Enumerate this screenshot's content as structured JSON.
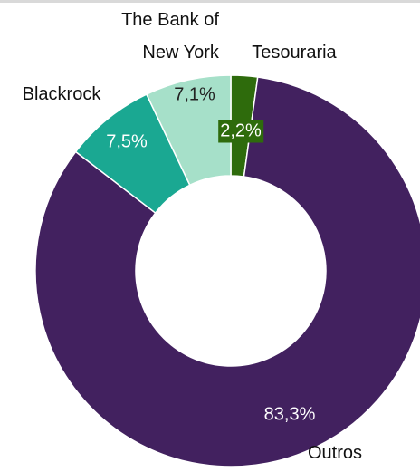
{
  "chart_data": {
    "type": "donut",
    "categories": [
      "Tesouraria",
      "Outros",
      "Blackrock",
      "The Bank of\nNew York"
    ],
    "values": [
      2.2,
      83.3,
      7.5,
      7.1
    ],
    "value_labels": [
      "2,2%",
      "83,3%",
      "7,5%",
      "7,1%"
    ],
    "colors": [
      "#2e6b0c",
      "#42215f",
      "#1aa892",
      "#a6e0c9"
    ]
  }
}
